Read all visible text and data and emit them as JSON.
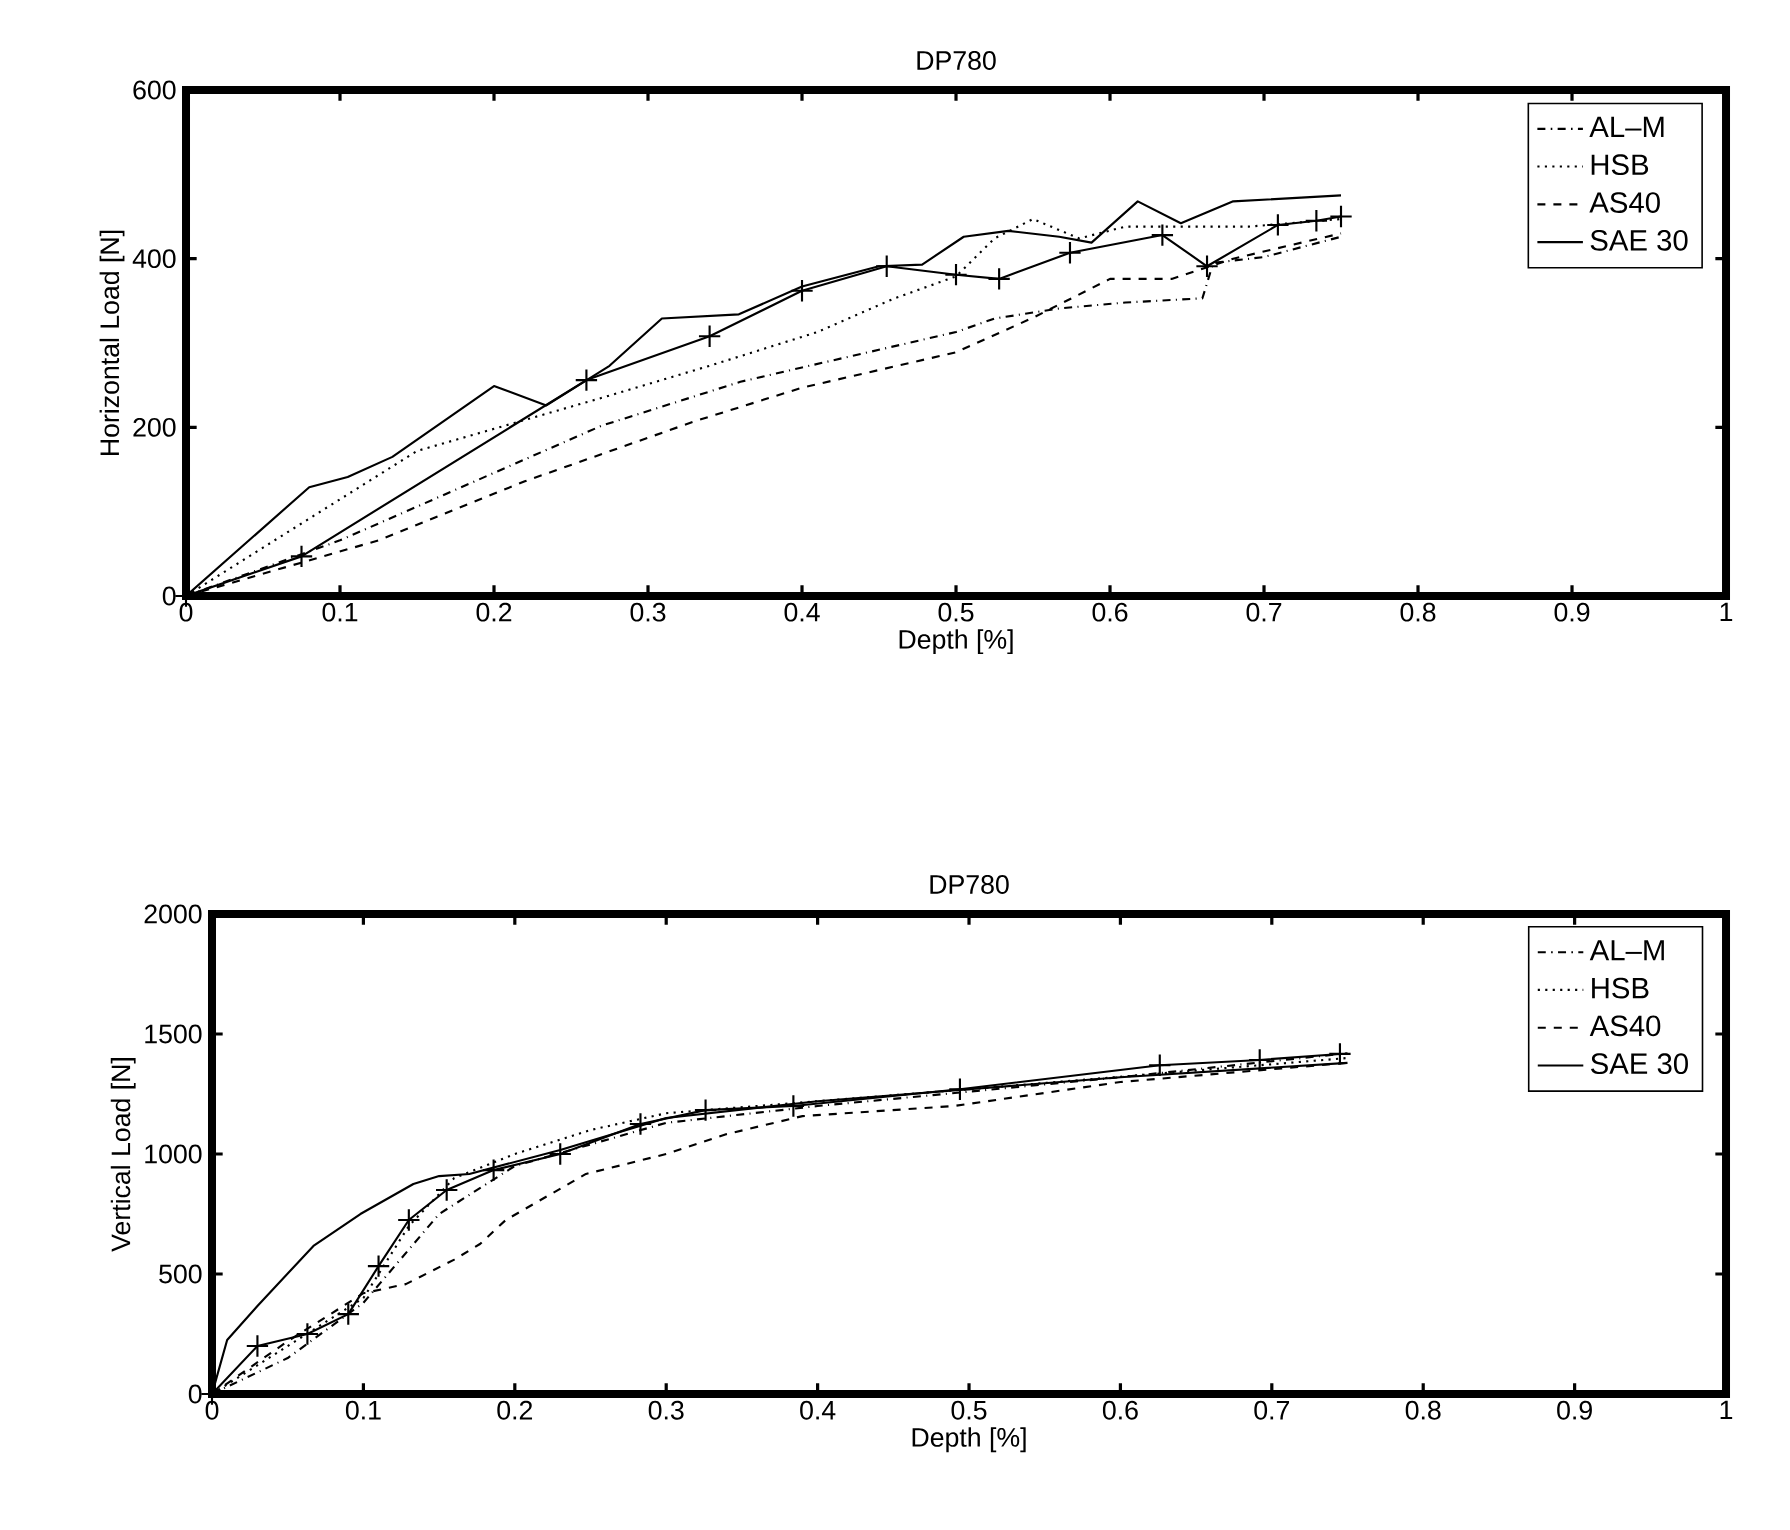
{
  "chart_data": [
    {
      "type": "line",
      "title": "DP780",
      "xlabel": "Depth [%]",
      "ylabel": "Horizontal Load [N]",
      "xlim": [
        0,
        1
      ],
      "xticks": [
        0,
        0.1,
        0.2,
        0.3,
        0.4,
        0.5,
        0.6,
        0.7,
        0.8,
        0.9,
        1
      ],
      "ylim": [
        0,
        600
      ],
      "yticks": [
        0,
        200,
        400,
        600
      ],
      "legend": "top right",
      "marker": "none",
      "series": [
        {
          "name": "AL–M",
          "color": "#000000",
          "line_style": "dashdot",
          "x": [
            0,
            0.1,
            0.27,
            0.36,
            0.4,
            0.5,
            0.525,
            0.567,
            0.61,
            0.66,
            0.667,
            0.7,
            0.75
          ],
          "values": [
            0,
            66,
            202,
            254,
            271,
            313,
            329,
            341,
            348,
            353,
            395,
            402,
            426
          ]
        },
        {
          "name": "HSB",
          "color": "#000000",
          "line_style": "dotted",
          "x": [
            0,
            0.15,
            0.27,
            0.34,
            0.41,
            0.46,
            0.5,
            0.525,
            0.55,
            0.58,
            0.61,
            0.69,
            0.75
          ],
          "values": [
            0,
            172,
            235,
            273,
            313,
            353,
            379,
            424,
            447,
            424,
            438,
            438,
            447
          ]
        },
        {
          "name": "AS40",
          "color": "#000000",
          "line_style": "dashed",
          "x": [
            0,
            0.125,
            0.22,
            0.33,
            0.4,
            0.5,
            0.55,
            0.6,
            0.64,
            0.68,
            0.75
          ],
          "values": [
            0,
            66,
            136,
            207,
            247,
            289,
            330,
            376,
            376,
            400,
            430
          ]
        },
        {
          "color": "#000000",
          "line_style": "solid",
          "marker": "cross",
          "x": [
            0,
            0.075,
            0.26,
            0.34,
            0.4,
            0.455,
            0.5,
            0.528,
            0.574,
            0.634,
            0.663,
            0.709,
            0.734,
            0.75
          ],
          "values": [
            0,
            47,
            256,
            308,
            362,
            391,
            381,
            376,
            407,
            428,
            391,
            440,
            445,
            450
          ]
        },
        {
          "name": "SAE 30",
          "color": "#000000",
          "line_style": "solid",
          "x": [
            0,
            0.08,
            0.105,
            0.134,
            0.2,
            0.234,
            0.275,
            0.309,
            0.359,
            0.4,
            0.45,
            0.478,
            0.505,
            0.534,
            0.567,
            0.588,
            0.618,
            0.646,
            0.68,
            0.75
          ],
          "values": [
            0,
            129,
            141,
            165,
            249,
            226,
            273,
            329,
            334,
            367,
            391,
            393,
            426,
            433,
            426,
            419,
            468,
            442,
            468,
            475
          ]
        }
      ]
    },
    {
      "type": "line",
      "title": "DP780",
      "xlabel": "Depth [%]",
      "ylabel": "Vertical Load [N]",
      "xlim": [
        0,
        1
      ],
      "xticks": [
        0,
        0.1,
        0.2,
        0.3,
        0.4,
        0.5,
        0.6,
        0.7,
        0.8,
        0.9,
        1
      ],
      "ylim": [
        0,
        2000
      ],
      "yticks": [
        0,
        500,
        1000,
        1500,
        2000
      ],
      "legend": "top right",
      "marker": "none",
      "series": [
        {
          "name": "AL–M",
          "color": "#000000",
          "line_style": "dashdot",
          "x": [
            0,
            0.05,
            0.1,
            0.15,
            0.2,
            0.3,
            0.4,
            0.5,
            0.6,
            0.75
          ],
          "values": [
            0,
            150,
            380,
            750,
            950,
            1130,
            1200,
            1260,
            1320,
            1420
          ]
        },
        {
          "name": "HSB",
          "color": "#000000",
          "line_style": "dotted",
          "x": [
            0,
            0.05,
            0.1,
            0.13,
            0.16,
            0.2,
            0.25,
            0.3,
            0.5,
            0.75
          ],
          "values": [
            0,
            200,
            400,
            700,
            900,
            1000,
            1100,
            1170,
            1270,
            1400
          ]
        },
        {
          "name": "AS40",
          "color": "#000000",
          "line_style": "dashed",
          "x": [
            0,
            0.05,
            0.1,
            0.128,
            0.16,
            0.177,
            0.194,
            0.247,
            0.3,
            0.34,
            0.39,
            0.49,
            0.6,
            0.75
          ],
          "values": [
            0,
            220,
            420,
            458,
            560,
            625,
            725,
            917,
            1000,
            1083,
            1158,
            1200,
            1300,
            1380
          ]
        },
        {
          "color": "#000000",
          "line_style": "solid",
          "marker": "cross",
          "x": [
            0,
            0.03,
            0.063,
            0.09,
            0.11,
            0.13,
            0.155,
            0.186,
            0.23,
            0.283,
            0.326,
            0.384,
            0.494,
            0.56,
            0.626,
            0.692,
            0.745
          ],
          "values": [
            0,
            200,
            250,
            333,
            533,
            725,
            850,
            933,
            1000,
            1125,
            1183,
            1200,
            1270,
            null,
            1370,
            1392,
            1417
          ]
        },
        {
          "name": "SAE 30",
          "color": "#000000",
          "line_style": "solid",
          "x": [
            0,
            0.01,
            0.03,
            0.067,
            0.098,
            0.133,
            0.15,
            0.17,
            0.23,
            0.3,
            0.4,
            0.5,
            0.6,
            0.75
          ],
          "values": [
            0,
            225,
            367,
            617,
            750,
            875,
            908,
            917,
            1017,
            1150,
            1220,
            1270,
            1320,
            1380
          ]
        }
      ]
    }
  ]
}
